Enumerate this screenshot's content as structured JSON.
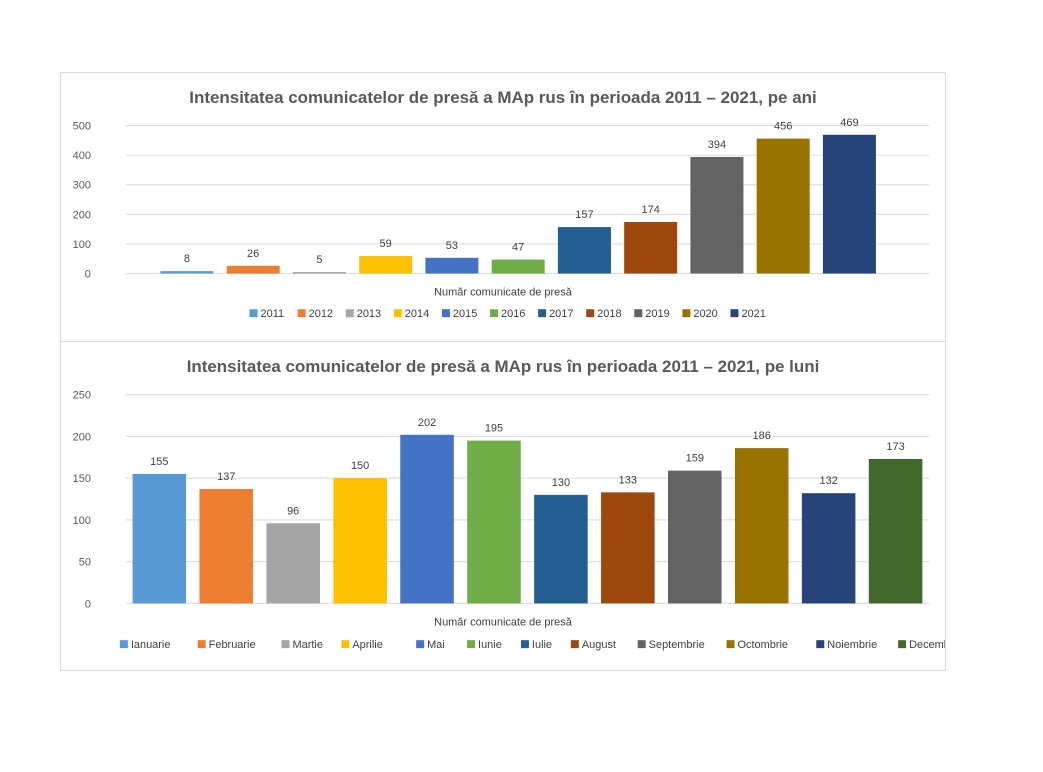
{
  "chart_data": [
    {
      "type": "bar",
      "title": "Intensitatea comunicatelor de presă a MAp rus în perioada 2011 – 2021, pe ani",
      "xlabel": "Număr comunicate de presă",
      "ylabel": "",
      "ylim": [
        0,
        500
      ],
      "yticks": [
        "0",
        "100",
        "200",
        "300",
        "400",
        "500"
      ],
      "grid": true,
      "legend_position": "bottom",
      "categories": [
        "2011",
        "2012",
        "2013",
        "2014",
        "2015",
        "2016",
        "2017",
        "2018",
        "2019",
        "2020",
        "2021"
      ],
      "values": [
        8,
        26,
        5,
        59,
        53,
        47,
        157,
        174,
        394,
        456,
        469
      ],
      "colors": [
        "#5b9bd5",
        "#ed7d31",
        "#a5a5a5",
        "#ffc000",
        "#4472c4",
        "#70ad47",
        "#255e91",
        "#9e480e",
        "#636363",
        "#997300",
        "#264478"
      ]
    },
    {
      "type": "bar",
      "title": "Intensitatea comunicatelor de presă a MAp rus în perioada 2011 – 2021, pe luni",
      "xlabel": "Număr comunicate de presă",
      "ylabel": "",
      "ylim": [
        0,
        250
      ],
      "yticks": [
        "0",
        "50",
        "100",
        "150",
        "200",
        "250"
      ],
      "grid": true,
      "legend_position": "bottom",
      "categories": [
        "Ianuarie",
        "Februarie",
        "Martie",
        "Aprilie",
        "Mai",
        "Iunie",
        "Iulie",
        "August",
        "Septembrie",
        "Octombrie",
        "Noiembrie",
        "Decembrie"
      ],
      "values": [
        155,
        137,
        96,
        150,
        202,
        195,
        130,
        133,
        159,
        186,
        132,
        173
      ],
      "colors": [
        "#5b9bd5",
        "#ed7d31",
        "#a5a5a5",
        "#ffc000",
        "#4472c4",
        "#70ad47",
        "#255e91",
        "#9e480e",
        "#636363",
        "#997300",
        "#264478",
        "#43682b"
      ]
    }
  ]
}
